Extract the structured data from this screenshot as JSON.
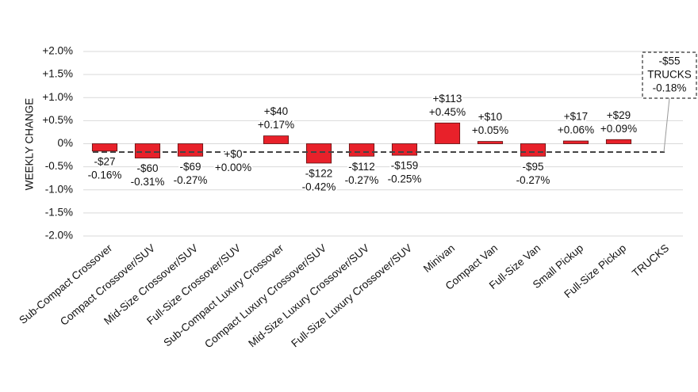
{
  "chart_data": {
    "type": "bar",
    "y_label": "WEEKLY CHANGE",
    "categories": [
      "Sub-Compact Crossover",
      "Compact Crossover/SUV",
      "Mid-Size Crossover/SUV",
      "Full-Size Crossover/SUV",
      "Sub-Compact Luxury Crossover",
      "Compact Luxury Crossover/SUV",
      "Mid-Size Luxury Crossover/SUV",
      "Full-Size Luxury Crossover/SUV",
      "Minivan",
      "Compact Van",
      "Full-Size Van",
      "Small Pickup",
      "Full-Size Pickup",
      "TRUCKS"
    ],
    "values": [
      -0.16,
      -0.31,
      -0.27,
      0.0,
      0.17,
      -0.42,
      -0.27,
      -0.25,
      0.45,
      0.05,
      -0.27,
      0.06,
      0.09,
      null
    ],
    "value_labels": [
      "-0.16%",
      "-0.31%",
      "-0.27%",
      "+0.00%",
      "+0.17%",
      "-0.42%",
      "-0.27%",
      "-0.25%",
      "+0.45%",
      "+0.05%",
      "-0.27%",
      "+0.06%",
      "+0.09%",
      null
    ],
    "price_change_labels": [
      "-$27",
      "-$60",
      "-$69",
      "+$0",
      "+$40",
      "-$122",
      "-$112",
      "-$159",
      "+$113",
      "+$10",
      "-$95",
      "+$17",
      "+$29",
      null
    ],
    "color": "#e8212a",
    "reference": {
      "name": "TRUCKS",
      "price_label": "-$55",
      "value": -0.18,
      "value_label": "-0.18%"
    },
    "ylim": [
      -2.0,
      2.0
    ],
    "yticks": [
      {
        "value": -2.0,
        "label": "-2.0%"
      },
      {
        "value": -1.5,
        "label": "-1.5%"
      },
      {
        "value": -1.0,
        "label": "-1.0%"
      },
      {
        "value": -0.5,
        "label": "-0.5%"
      },
      {
        "value": 0,
        "label": "0%"
      },
      {
        "value": 0.5,
        "label": "+0.5%"
      },
      {
        "value": 1.0,
        "label": "+1.0%"
      },
      {
        "value": 1.5,
        "label": "+1.5%"
      },
      {
        "value": 2.0,
        "label": "+2.0%"
      }
    ],
    "grid": true
  }
}
